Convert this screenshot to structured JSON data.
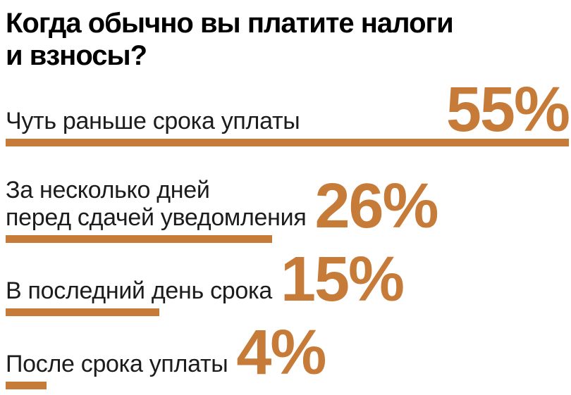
{
  "colors": {
    "accent": "#C77B38",
    "text": "#1C1C1C",
    "title": "#000000",
    "background": "#FFFFFF"
  },
  "title_lines": [
    "Когда обычно вы платите налоги",
    "и взносы?"
  ],
  "chart_data": {
    "type": "bar",
    "orientation": "horizontal",
    "title": "Когда обычно вы платите налоги и взносы?",
    "unit": "%",
    "max_value": 55,
    "categories": [
      "Чуть раньше срока уплаты",
      "За несколько дней перед сдачей уведомления",
      "В последний день срока",
      "После срока уплаты"
    ],
    "values": [
      55,
      26,
      15,
      4
    ],
    "items": [
      {
        "label_lines": [
          "Чуть раньше срока уплаты"
        ],
        "value": 55,
        "value_label": "55%"
      },
      {
        "label_lines": [
          "За несколько дней",
          "перед сдачей уведомления"
        ],
        "value": 26,
        "value_label": "26%"
      },
      {
        "label_lines": [
          "В последний день срока"
        ],
        "value": 15,
        "value_label": "15%"
      },
      {
        "label_lines": [
          "После срока уплаты"
        ],
        "value": 4,
        "value_label": "4%"
      }
    ]
  }
}
